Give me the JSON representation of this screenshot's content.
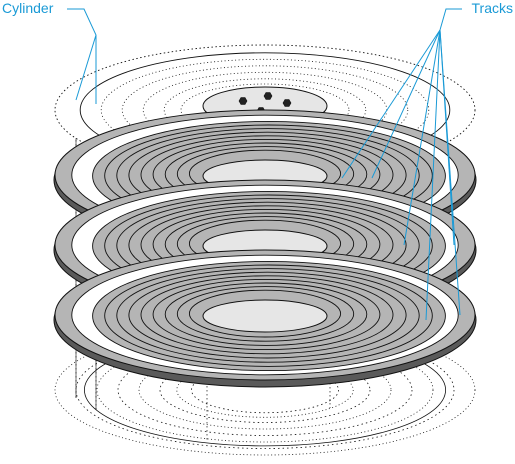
{
  "labels": {
    "cylinder": "Cylinder",
    "tracks": "Tracks"
  },
  "colors": {
    "label": "#1a9ad6",
    "leader": "#1a9ad6",
    "platter_fill": "#b5b5b5",
    "platter_rim": "#5a5a5a",
    "hub_fill": "#e6e6e6",
    "line": "#111111"
  },
  "diagram": {
    "platter_count": 3,
    "ghost_platters": [
      "top",
      "bottom"
    ],
    "track_count_per_platter": 8,
    "spindle_bolt_count": 4,
    "components": [
      "platter",
      "hub",
      "spindle-bolt",
      "cylinder-line",
      "leader-line",
      "track-ring"
    ]
  }
}
